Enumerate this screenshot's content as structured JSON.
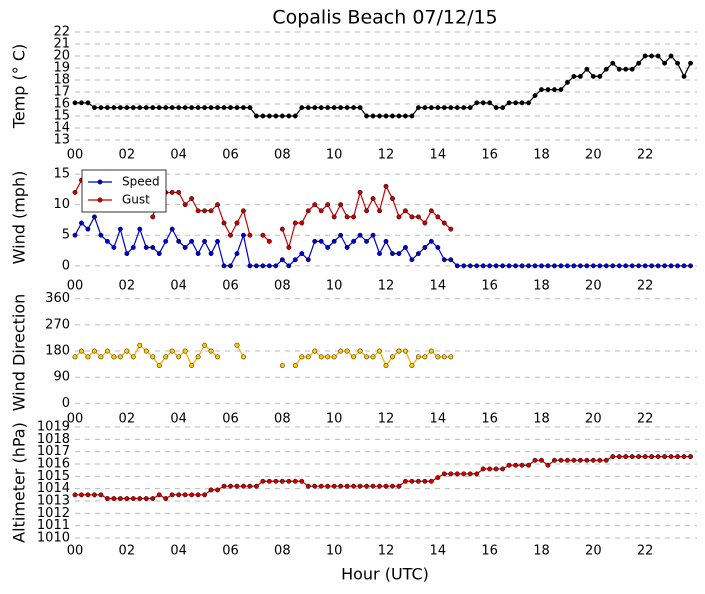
{
  "chart_data": [
    {
      "type": "line",
      "title": "Copalis Beach 07/12/15",
      "y_label": "Temp (° C)",
      "x": [
        0,
        0.25,
        0.5,
        0.75,
        1,
        1.25,
        1.5,
        1.75,
        2,
        2.25,
        2.5,
        2.75,
        3,
        3.25,
        3.5,
        3.75,
        4,
        4.25,
        4.5,
        4.75,
        5,
        5.25,
        5.5,
        5.75,
        6,
        6.25,
        6.5,
        6.75,
        7,
        7.25,
        7.5,
        7.75,
        8,
        8.25,
        8.5,
        8.75,
        9,
        9.25,
        9.5,
        9.75,
        10,
        10.25,
        10.5,
        10.75,
        11,
        11.25,
        11.5,
        11.75,
        12,
        12.25,
        12.5,
        12.75,
        13,
        13.25,
        13.5,
        13.75,
        14,
        14.25,
        14.5,
        14.75,
        15,
        15.25,
        15.5,
        15.75,
        16,
        16.25,
        16.5,
        16.75,
        17,
        17.25,
        17.5,
        17.75,
        18,
        18.25,
        18.5,
        18.75,
        19,
        19.25,
        19.5,
        19.75,
        20,
        20.25,
        20.5,
        20.75,
        21,
        21.25,
        21.5,
        21.75,
        22,
        22.25,
        22.5,
        22.75,
        23,
        23.25,
        23.5,
        23.75
      ],
      "series": [
        {
          "color": "#000000",
          "marker_color": "#000000",
          "values": [
            16.1,
            16.1,
            16.1,
            15.7,
            15.7,
            15.7,
            15.7,
            15.7,
            15.7,
            15.7,
            15.7,
            15.7,
            15.7,
            15.7,
            15.7,
            15.7,
            15.7,
            15.7,
            15.7,
            15.7,
            15.7,
            15.7,
            15.7,
            15.7,
            15.7,
            15.7,
            15.7,
            15.7,
            15,
            15,
            15,
            15,
            15,
            15,
            15,
            15.7,
            15.7,
            15.7,
            15.7,
            15.7,
            15.7,
            15.7,
            15.7,
            15.7,
            15.7,
            15,
            15,
            15,
            15,
            15,
            15,
            15,
            15,
            15.7,
            15.7,
            15.7,
            15.7,
            15.7,
            15.7,
            15.7,
            15.7,
            15.7,
            16.1,
            16.1,
            16.1,
            15.7,
            15.7,
            16.1,
            16.1,
            16.1,
            16.1,
            16.7,
            17.2,
            17.2,
            17.2,
            17.2,
            17.8,
            18.3,
            18.3,
            18.9,
            18.3,
            18.3,
            18.9,
            19.4,
            18.9,
            18.9,
            18.9,
            19.4,
            20,
            20,
            20,
            19.4,
            20,
            19.4,
            18.3,
            19.4
          ]
        }
      ],
      "xlim": [
        0,
        24
      ],
      "xticks": [
        {
          "value": 0,
          "label": "00"
        },
        {
          "value": 2,
          "label": "02"
        },
        {
          "value": 4,
          "label": "04"
        },
        {
          "value": 6,
          "label": "06"
        },
        {
          "value": 8,
          "label": "08"
        },
        {
          "value": 10,
          "label": "10"
        },
        {
          "value": 12,
          "label": "12"
        },
        {
          "value": 14,
          "label": "14"
        },
        {
          "value": 16,
          "label": "16"
        },
        {
          "value": 18,
          "label": "18"
        },
        {
          "value": 20,
          "label": "20"
        },
        {
          "value": 22,
          "label": "22"
        }
      ],
      "ylim": [
        13,
        22
      ],
      "yticks": [
        13,
        14,
        15,
        16,
        17,
        18,
        19,
        20,
        21,
        22
      ],
      "grid": true
    },
    {
      "type": "line",
      "y_label": "Wind (mph)",
      "legend": "upper left",
      "x": [
        0,
        0.25,
        0.5,
        0.75,
        1,
        1.25,
        1.5,
        1.75,
        2,
        2.25,
        2.5,
        2.75,
        3,
        3.25,
        3.5,
        3.75,
        4,
        4.25,
        4.5,
        4.75,
        5,
        5.25,
        5.5,
        5.75,
        6,
        6.25,
        6.5,
        6.75,
        7,
        7.25,
        7.5,
        7.75,
        8,
        8.25,
        8.5,
        8.75,
        9,
        9.25,
        9.5,
        9.75,
        10,
        10.25,
        10.5,
        10.75,
        11,
        11.25,
        11.5,
        11.75,
        12,
        12.25,
        12.5,
        12.75,
        13,
        13.25,
        13.5,
        13.75,
        14,
        14.25,
        14.5,
        14.75,
        15,
        15.25,
        15.5,
        15.75,
        16,
        16.25,
        16.5,
        16.75,
        17,
        17.25,
        17.5,
        17.75,
        18,
        18.25,
        18.5,
        18.75,
        19,
        19.25,
        19.5,
        19.75,
        20,
        20.25,
        20.5,
        20.75,
        21,
        21.25,
        21.5,
        21.75,
        22,
        22.25,
        22.5,
        22.75,
        23,
        23.25,
        23.5,
        23.75
      ],
      "series": [
        {
          "name": "Speed",
          "color": "#0000cc",
          "marker_color": "#0000cc",
          "values": [
            5,
            7,
            6,
            8,
            5,
            4,
            3,
            6,
            2,
            3,
            6,
            3,
            3,
            2,
            4,
            6,
            4,
            3,
            4,
            2,
            4,
            2,
            4,
            0,
            0,
            2,
            5,
            0,
            0,
            0,
            0,
            0,
            1,
            0,
            1,
            2,
            1,
            4,
            4,
            3,
            4,
            5,
            3,
            4,
            5,
            4,
            5,
            2,
            4,
            2,
            2,
            3,
            1,
            2,
            3,
            4,
            3,
            1,
            1,
            0,
            0,
            0,
            0,
            0,
            0,
            0,
            0,
            0,
            0,
            0,
            0,
            0,
            0,
            0,
            0,
            0,
            0,
            0,
            0,
            0,
            0,
            0,
            0,
            0,
            0,
            0,
            0,
            0,
            0,
            0,
            0,
            0,
            0,
            0,
            0,
            0
          ]
        },
        {
          "name": "Gust",
          "color": "#cc0000",
          "marker_color": "#cc0000",
          "values": [
            12,
            14,
            null,
            null,
            null,
            null,
            null,
            null,
            null,
            null,
            null,
            null,
            8,
            12,
            12,
            12,
            12,
            10,
            11,
            9,
            9,
            9,
            10,
            7,
            5,
            7,
            9,
            5,
            null,
            5,
            4,
            null,
            6,
            3,
            7,
            7,
            9,
            10,
            9,
            10,
            8,
            10,
            8,
            8,
            12,
            9,
            11,
            9,
            13,
            11,
            8,
            9,
            8,
            8,
            7,
            9,
            8,
            7,
            6,
            null,
            null,
            null,
            null,
            null,
            null,
            null,
            null,
            null,
            null,
            null,
            null,
            null,
            null,
            null,
            null,
            null,
            null,
            null,
            null,
            null,
            null,
            null,
            null,
            null,
            null,
            null,
            null,
            null,
            null,
            null,
            null,
            null,
            null,
            null,
            null,
            null
          ]
        }
      ],
      "xlim": [
        0,
        24
      ],
      "xticks": [
        {
          "value": 0,
          "label": "00"
        },
        {
          "value": 2,
          "label": "02"
        },
        {
          "value": 4,
          "label": "04"
        },
        {
          "value": 6,
          "label": "06"
        },
        {
          "value": 8,
          "label": "08"
        },
        {
          "value": 10,
          "label": "10"
        },
        {
          "value": 12,
          "label": "12"
        },
        {
          "value": 14,
          "label": "14"
        },
        {
          "value": 16,
          "label": "16"
        },
        {
          "value": 18,
          "label": "18"
        },
        {
          "value": 20,
          "label": "20"
        },
        {
          "value": 22,
          "label": "22"
        }
      ],
      "ylim": [
        -1.5,
        17.3
      ],
      "yticks": [
        0,
        5,
        10,
        15
      ],
      "grid": true
    },
    {
      "type": "line",
      "y_label": "Wind Direction",
      "x": [
        0,
        0.25,
        0.5,
        0.75,
        1,
        1.25,
        1.5,
        1.75,
        2,
        2.25,
        2.5,
        2.75,
        3,
        3.25,
        3.5,
        3.75,
        4,
        4.25,
        4.5,
        4.75,
        5,
        5.25,
        5.5,
        5.75,
        6,
        6.25,
        6.5,
        6.75,
        7,
        7.25,
        7.5,
        7.75,
        8,
        8.25,
        8.5,
        8.75,
        9,
        9.25,
        9.5,
        9.75,
        10,
        10.25,
        10.5,
        10.75,
        11,
        11.25,
        11.5,
        11.75,
        12,
        12.25,
        12.5,
        12.75,
        13,
        13.25,
        13.5,
        13.75,
        14,
        14.25,
        14.5,
        14.75,
        15,
        15.25,
        15.5,
        15.75,
        16,
        16.25,
        16.5,
        16.75,
        17,
        17.25,
        17.5,
        17.75,
        18,
        18.25,
        18.5,
        18.75,
        19,
        19.25,
        19.5,
        19.75,
        20,
        20.25,
        20.5,
        20.75,
        21,
        21.25,
        21.5,
        21.75,
        22,
        22.25,
        22.5,
        22.75,
        23,
        23.25,
        23.5,
        23.75
      ],
      "series": [
        {
          "color": "#ffa500",
          "marker_color": "#ffcc00",
          "values": [
            160,
            180,
            160,
            180,
            160,
            180,
            160,
            160,
            180,
            160,
            200,
            180,
            160,
            130,
            160,
            180,
            160,
            180,
            130,
            160,
            200,
            180,
            160,
            null,
            null,
            200,
            160,
            null,
            null,
            null,
            null,
            null,
            130,
            null,
            130,
            160,
            160,
            180,
            160,
            160,
            160,
            180,
            180,
            160,
            180,
            160,
            160,
            180,
            130,
            160,
            180,
            180,
            130,
            160,
            160,
            180,
            160,
            160,
            160,
            null,
            null,
            null,
            null,
            null,
            null,
            null,
            null,
            null,
            null,
            null,
            null,
            null,
            null,
            null,
            null,
            null,
            null,
            null,
            null,
            null,
            null,
            null,
            null,
            null,
            null,
            null,
            null,
            null,
            null,
            null,
            null,
            null,
            null,
            null,
            null,
            null
          ]
        }
      ],
      "xlim": [
        0,
        24
      ],
      "xticks": [
        {
          "value": 0,
          "label": "00"
        },
        {
          "value": 2,
          "label": "02"
        },
        {
          "value": 4,
          "label": "04"
        },
        {
          "value": 6,
          "label": "06"
        },
        {
          "value": 8,
          "label": "08"
        },
        {
          "value": 10,
          "label": "10"
        },
        {
          "value": 12,
          "label": "12"
        },
        {
          "value": 14,
          "label": "14"
        },
        {
          "value": 16,
          "label": "16"
        },
        {
          "value": 18,
          "label": "18"
        },
        {
          "value": 20,
          "label": "20"
        },
        {
          "value": 22,
          "label": "22"
        }
      ],
      "ylim": [
        -40,
        390
      ],
      "yticks": [
        0,
        90,
        180,
        270,
        360
      ],
      "grid": true
    },
    {
      "type": "line",
      "y_label": "Altimeter (hPa)",
      "x_label": "Hour (UTC)",
      "x": [
        0,
        0.25,
        0.5,
        0.75,
        1,
        1.25,
        1.5,
        1.75,
        2,
        2.25,
        2.5,
        2.75,
        3,
        3.25,
        3.5,
        3.75,
        4,
        4.25,
        4.5,
        4.75,
        5,
        5.25,
        5.5,
        5.75,
        6,
        6.25,
        6.5,
        6.75,
        7,
        7.25,
        7.5,
        7.75,
        8,
        8.25,
        8.5,
        8.75,
        9,
        9.25,
        9.5,
        9.75,
        10,
        10.25,
        10.5,
        10.75,
        11,
        11.25,
        11.5,
        11.75,
        12,
        12.25,
        12.5,
        12.75,
        13,
        13.25,
        13.5,
        13.75,
        14,
        14.25,
        14.5,
        14.75,
        15,
        15.25,
        15.5,
        15.75,
        16,
        16.25,
        16.5,
        16.75,
        17,
        17.25,
        17.5,
        17.75,
        18,
        18.25,
        18.5,
        18.75,
        19,
        19.25,
        19.5,
        19.75,
        20,
        20.25,
        20.5,
        20.75,
        21,
        21.25,
        21.5,
        21.75,
        22,
        22.25,
        22.5,
        22.75,
        23,
        23.25,
        23.5,
        23.75
      ],
      "series": [
        {
          "color": "#cc0000",
          "marker_color": "#cc0000",
          "values": [
            1013.5,
            1013.5,
            1013.5,
            1013.5,
            1013.5,
            1013.2,
            1013.2,
            1013.2,
            1013.2,
            1013.2,
            1013.2,
            1013.2,
            1013.2,
            1013.5,
            1013.2,
            1013.5,
            1013.5,
            1013.5,
            1013.5,
            1013.5,
            1013.5,
            1013.9,
            1013.9,
            1014.2,
            1014.2,
            1014.2,
            1014.2,
            1014.2,
            1014.2,
            1014.6,
            1014.6,
            1014.6,
            1014.6,
            1014.6,
            1014.6,
            1014.6,
            1014.2,
            1014.2,
            1014.2,
            1014.2,
            1014.2,
            1014.2,
            1014.2,
            1014.2,
            1014.2,
            1014.2,
            1014.2,
            1014.2,
            1014.2,
            1014.2,
            1014.2,
            1014.6,
            1014.6,
            1014.6,
            1014.6,
            1014.6,
            1014.9,
            1015.2,
            1015.2,
            1015.2,
            1015.2,
            1015.2,
            1015.2,
            1015.6,
            1015.6,
            1015.6,
            1015.6,
            1015.9,
            1015.9,
            1015.9,
            1015.9,
            1016.3,
            1016.3,
            1015.9,
            1016.3,
            1016.3,
            1016.3,
            1016.3,
            1016.3,
            1016.3,
            1016.3,
            1016.3,
            1016.3,
            1016.6,
            1016.6,
            1016.6,
            1016.6,
            1016.6,
            1016.6,
            1016.6,
            1016.6,
            1016.6,
            1016.6,
            1016.6,
            1016.6,
            1016.6
          ]
        }
      ],
      "xlim": [
        0,
        24
      ],
      "xticks": [
        {
          "value": 0,
          "label": "00"
        },
        {
          "value": 2,
          "label": "02"
        },
        {
          "value": 4,
          "label": "04"
        },
        {
          "value": 6,
          "label": "06"
        },
        {
          "value": 8,
          "label": "08"
        },
        {
          "value": 10,
          "label": "10"
        },
        {
          "value": 12,
          "label": "12"
        },
        {
          "value": 14,
          "label": "14"
        },
        {
          "value": 16,
          "label": "16"
        },
        {
          "value": 18,
          "label": "18"
        },
        {
          "value": 20,
          "label": "20"
        },
        {
          "value": 22,
          "label": "22"
        }
      ],
      "ylim": [
        1010,
        1019
      ],
      "yticks": [
        1010,
        1011,
        1012,
        1013,
        1014,
        1015,
        1016,
        1017,
        1018,
        1019
      ],
      "grid": true
    }
  ]
}
